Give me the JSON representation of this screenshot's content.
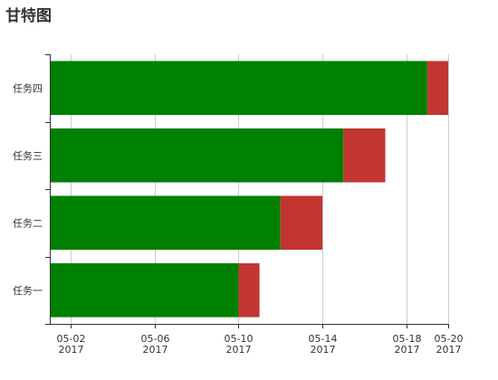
{
  "chart_data": {
    "type": "bar",
    "title": "甘特图",
    "xlabel": "",
    "ylabel": "",
    "categories": [
      "任务一",
      "任务二",
      "任务三",
      "任务四"
    ],
    "x_ticks": [
      {
        "label": "05-02",
        "sub": "2017",
        "date": "2017-05-02"
      },
      {
        "label": "05-06",
        "sub": "2017",
        "date": "2017-05-06"
      },
      {
        "label": "05-10",
        "sub": "2017",
        "date": "2017-05-10"
      },
      {
        "label": "05-14",
        "sub": "2017",
        "date": "2017-05-14"
      },
      {
        "label": "05-18",
        "sub": "2017",
        "date": "2017-05-18"
      },
      {
        "label": "05-20",
        "sub": "2017",
        "date": "2017-05-20"
      }
    ],
    "xlim": [
      "2017-05-01",
      "2017-05-20"
    ],
    "series": [
      {
        "color": "#008000",
        "values": [
          [
            "2017-05-01",
            "2017-05-10"
          ],
          [
            "2017-05-01",
            "2017-05-12"
          ],
          [
            "2017-05-01",
            "2017-05-15"
          ],
          [
            "2017-05-01",
            "2017-05-19"
          ]
        ]
      },
      {
        "color": "#c23531",
        "values": [
          [
            "2017-05-10",
            "2017-05-11"
          ],
          [
            "2017-05-12",
            "2017-05-14"
          ],
          [
            "2017-05-15",
            "2017-05-17"
          ],
          [
            "2017-05-19",
            "2017-05-20"
          ]
        ]
      }
    ],
    "grid": true,
    "legend": "none"
  }
}
